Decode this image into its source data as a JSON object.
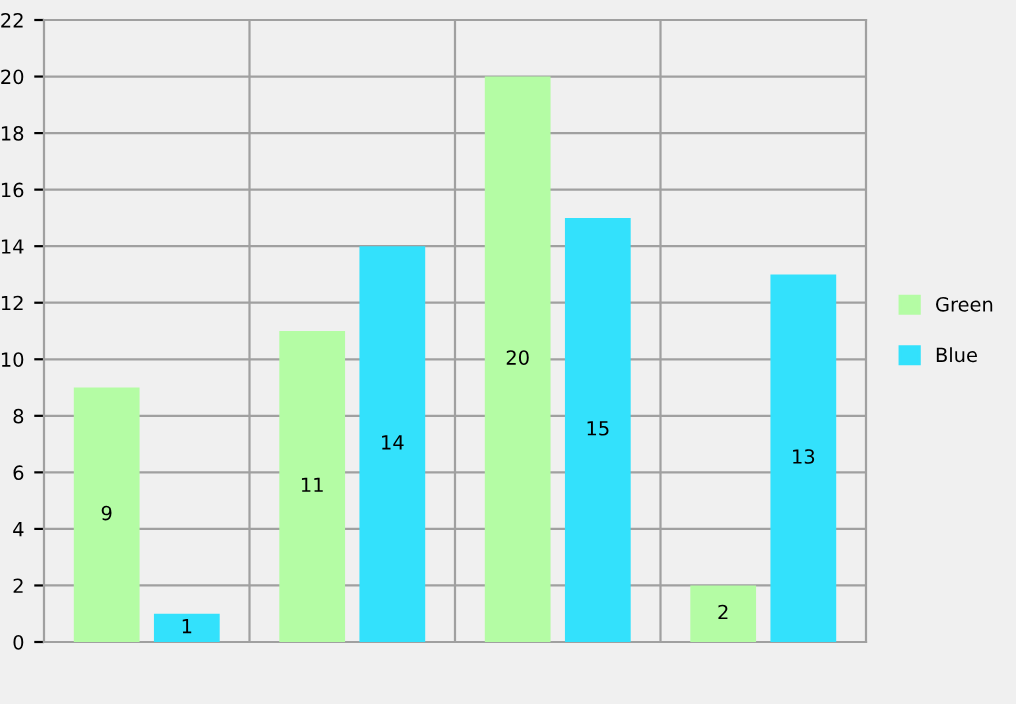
{
  "chart_data": {
    "type": "bar",
    "categories": [
      null,
      null,
      null,
      null
    ],
    "series": [
      {
        "name": "Green",
        "color": "#b4fca4",
        "values": [
          9,
          11,
          20,
          2
        ]
      },
      {
        "name": "Blue",
        "color": "#33e1fc",
        "values": [
          1,
          14,
          15,
          13
        ]
      }
    ],
    "ylim": [
      0,
      22
    ],
    "yticks": [
      0,
      2,
      4,
      6,
      8,
      10,
      12,
      14,
      16,
      18,
      20,
      22
    ],
    "grid": true,
    "legend": "right",
    "data_labels": true
  }
}
